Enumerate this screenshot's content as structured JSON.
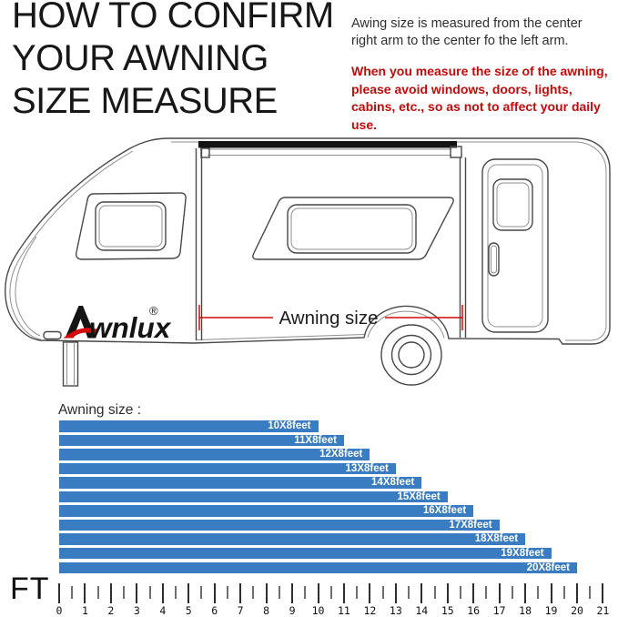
{
  "header": {
    "title_lines": [
      "HOW TO CONFIRM",
      "YOUR AWNING",
      "SIZE MEASURE"
    ]
  },
  "info": {
    "note": "Awing size is measured from the center right arm to the center fo the left arm.",
    "warning": "When you measure the size of the awning, please avoid windows, doors, lights, cabins, etc., so as not to affect your daily use.",
    "warning_color": "#c10a0a"
  },
  "diagram": {
    "brand": "Awnlux",
    "brand_tail": "wnlux",
    "brand_registered": "®",
    "measure_label": "Awning size",
    "measure_color": "#d60909"
  },
  "chart_data": {
    "type": "bar",
    "orientation": "horizontal",
    "title": "Awning size :",
    "categories": [
      "10X8feet",
      "11X8feet",
      "12X8feet",
      "13X8feet",
      "14X8feet",
      "15X8feet",
      "16X8feet",
      "17X8feet",
      "18X8feet",
      "19X8feet",
      "20X8feet"
    ],
    "values": [
      10,
      11,
      12,
      13,
      14,
      15,
      16,
      17,
      18,
      19,
      20
    ],
    "unit_label": "FT",
    "xlim": [
      0,
      21
    ],
    "x_major_step": 1,
    "x_minor_step": 0.5,
    "x_tick_labels": [
      "0",
      "1",
      "2",
      "3",
      "4",
      "5",
      "6",
      "7",
      "8",
      "9",
      "10",
      "11",
      "12",
      "13",
      "14",
      "15",
      "16",
      "17",
      "18",
      "19",
      "20",
      "21"
    ],
    "bar_color": "#3a7cc1",
    "bar_label_color": "#ffffff",
    "grid": false,
    "legend": false
  }
}
